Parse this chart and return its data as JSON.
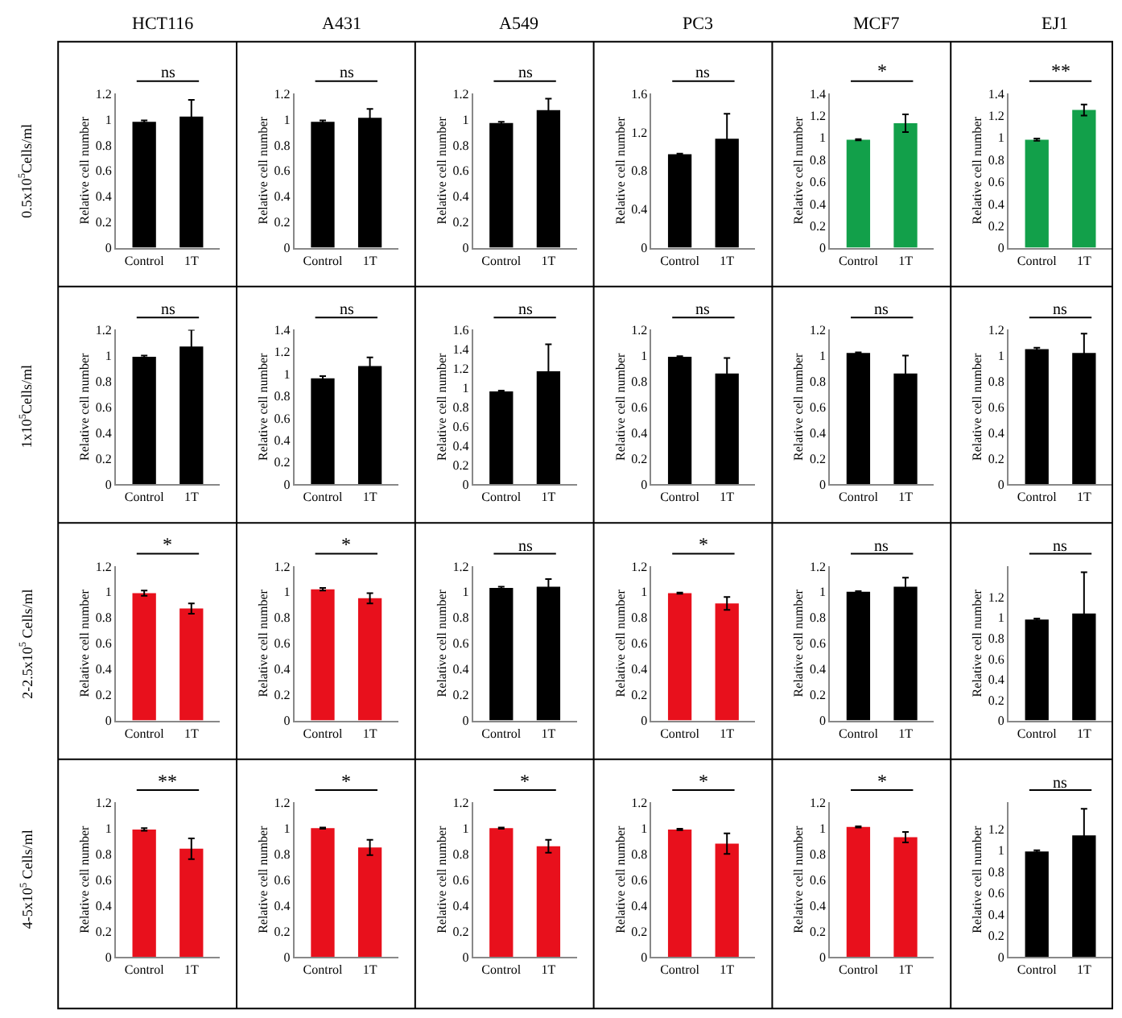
{
  "chart_data": [
    {
      "type": "bar",
      "title": "HCT116",
      "categories": [
        "Control",
        "1T"
      ],
      "values": [
        0.98,
        1.02
      ],
      "errors": [
        0.01,
        0.13
      ],
      "colors": [
        "#000000",
        "#000000"
      ],
      "ylabel": "Relative cell number",
      "ylim": [
        0,
        1.2
      ],
      "yticks": [
        0,
        0.2,
        0.4,
        0.6,
        0.8,
        1,
        1.2
      ],
      "annotations": [
        "ns",
        "0.5x10$^{5}$Cells/ml"
      ]
    },
    {
      "type": "bar",
      "title": "A431",
      "categories": [
        "Control",
        "1T"
      ],
      "values": [
        0.98,
        1.01
      ],
      "errors": [
        0.01,
        0.07
      ],
      "colors": [
        "#000000",
        "#000000"
      ],
      "ylabel": "Relative cell number",
      "ylim": [
        0,
        1.2
      ],
      "yticks": [
        0,
        0.2,
        0.4,
        0.6,
        0.8,
        1,
        1.2
      ],
      "annotations": [
        "ns"
      ]
    },
    {
      "type": "bar",
      "title": "A549",
      "categories": [
        "Control",
        "1T"
      ],
      "values": [
        0.97,
        1.07
      ],
      "errors": [
        0.01,
        0.09
      ],
      "colors": [
        "#000000",
        "#000000"
      ],
      "ylabel": "Relative cell number",
      "ylim": [
        0,
        1.2
      ],
      "yticks": [
        0,
        0.2,
        0.4,
        0.6,
        0.8,
        1,
        1.2
      ],
      "annotations": [
        "ns"
      ]
    },
    {
      "type": "bar",
      "title": "PC3",
      "categories": [
        "Control",
        "1T"
      ],
      "values": [
        0.97,
        1.13
      ],
      "errors": [
        0.005,
        0.26
      ],
      "colors": [
        "#000000",
        "#000000"
      ],
      "ylabel": "Relative cell number",
      "ylim": [
        0,
        1.6
      ],
      "yticks": [
        0,
        0.4,
        0.8,
        1.2,
        1.6
      ],
      "annotations": [
        "ns"
      ]
    },
    {
      "type": "bar",
      "title": "MCF7",
      "categories": [
        "Control",
        "1T"
      ],
      "values": [
        0.98,
        1.13
      ],
      "errors": [
        0.005,
        0.08
      ],
      "colors": [
        "#12a04a",
        "#12a04a"
      ],
      "ylabel": "Relative cell number",
      "ylim": [
        0,
        1.4
      ],
      "yticks": [
        0,
        0.2,
        0.4,
        0.6,
        0.8,
        1,
        1.2,
        1.4
      ],
      "annotations": [
        "*"
      ]
    },
    {
      "type": "bar",
      "title": "EJ1",
      "categories": [
        "Control",
        "1T"
      ],
      "values": [
        0.98,
        1.25
      ],
      "errors": [
        0.01,
        0.05
      ],
      "colors": [
        "#12a04a",
        "#12a04a"
      ],
      "ylabel": "Relative cell number",
      "ylim": [
        0,
        1.4
      ],
      "yticks": [
        0,
        0.2,
        0.4,
        0.6,
        0.8,
        1,
        1.2,
        1.4
      ],
      "annotations": [
        "**"
      ]
    },
    {
      "type": "bar",
      "categories": [
        "Control",
        "1T"
      ],
      "values": [
        0.99,
        1.07
      ],
      "errors": [
        0.01,
        0.13
      ],
      "colors": [
        "#000000",
        "#000000"
      ],
      "ylabel": "Relative cell number",
      "ylim": [
        0,
        1.2
      ],
      "yticks": [
        0,
        0.2,
        0.4,
        0.6,
        0.8,
        1,
        1.2
      ],
      "annotations": [
        "ns",
        "1x10$^{5}$Cells/ml"
      ]
    },
    {
      "type": "bar",
      "categories": [
        "Control",
        "1T"
      ],
      "values": [
        0.96,
        1.07
      ],
      "errors": [
        0.02,
        0.08
      ],
      "colors": [
        "#000000",
        "#000000"
      ],
      "ylabel": "Relative cell number",
      "ylim": [
        0,
        1.4
      ],
      "yticks": [
        0,
        0.2,
        0.4,
        0.6,
        0.8,
        1,
        1.2,
        1.4
      ],
      "annotations": [
        "ns"
      ]
    },
    {
      "type": "bar",
      "categories": [
        "Control",
        "1T"
      ],
      "values": [
        0.96,
        1.17
      ],
      "errors": [
        0.01,
        0.28
      ],
      "colors": [
        "#000000",
        "#000000"
      ],
      "ylabel": "Relative cell number",
      "ylim": [
        0,
        1.6
      ],
      "yticks": [
        0,
        0.2,
        0.4,
        0.6,
        0.8,
        1,
        1.2,
        1.4,
        1.6
      ],
      "annotations": [
        "ns"
      ]
    },
    {
      "type": "bar",
      "categories": [
        "Control",
        "1T"
      ],
      "values": [
        0.99,
        0.86
      ],
      "errors": [
        0.005,
        0.12
      ],
      "colors": [
        "#000000",
        "#000000"
      ],
      "ylabel": "Relative cell number",
      "ylim": [
        0,
        1.2
      ],
      "yticks": [
        0,
        0.2,
        0.4,
        0.6,
        0.8,
        1,
        1.2
      ],
      "annotations": [
        "ns"
      ]
    },
    {
      "type": "bar",
      "categories": [
        "Control",
        "1T"
      ],
      "values": [
        1.02,
        0.86
      ],
      "errors": [
        0.005,
        0.14
      ],
      "colors": [
        "#000000",
        "#000000"
      ],
      "ylabel": "Relative cell number",
      "ylim": [
        0,
        1.2
      ],
      "yticks": [
        0,
        0.2,
        0.4,
        0.6,
        0.8,
        1,
        1.2
      ],
      "annotations": [
        "ns"
      ]
    },
    {
      "type": "bar",
      "categories": [
        "Control",
        "1T"
      ],
      "values": [
        1.05,
        1.02
      ],
      "errors": [
        0.01,
        0.15
      ],
      "colors": [
        "#000000",
        "#000000"
      ],
      "ylabel": "Relative cell number",
      "ylim": [
        0,
        1.2
      ],
      "yticks": [
        0,
        0.2,
        0.4,
        0.6,
        0.8,
        1,
        1.2
      ],
      "annotations": [
        "ns"
      ]
    },
    {
      "type": "bar",
      "categories": [
        "Control",
        "1T"
      ],
      "values": [
        0.99,
        0.87
      ],
      "errors": [
        0.02,
        0.04
      ],
      "colors": [
        "#e8101c",
        "#e8101c"
      ],
      "ylabel": "Relative cell number",
      "ylim": [
        0,
        1.2
      ],
      "yticks": [
        0,
        0.2,
        0.4,
        0.6,
        0.8,
        1,
        1.2
      ],
      "annotations": [
        "*",
        "2-2.5x10$^{5}$ Cells/ml"
      ]
    },
    {
      "type": "bar",
      "categories": [
        "Control",
        "1T"
      ],
      "values": [
        1.02,
        0.95
      ],
      "errors": [
        0.01,
        0.04
      ],
      "colors": [
        "#e8101c",
        "#e8101c"
      ],
      "ylabel": "Relative cell number",
      "ylim": [
        0,
        1.2
      ],
      "yticks": [
        0,
        0.2,
        0.4,
        0.6,
        0.8,
        1,
        1.2
      ],
      "annotations": [
        "*"
      ]
    },
    {
      "type": "bar",
      "categories": [
        "Control",
        "1T"
      ],
      "values": [
        1.03,
        1.04
      ],
      "errors": [
        0.01,
        0.06
      ],
      "colors": [
        "#000000",
        "#000000"
      ],
      "ylabel": "Relative cell number",
      "ylim": [
        0,
        1.2
      ],
      "yticks": [
        0,
        0.2,
        0.4,
        0.6,
        0.8,
        1,
        1.2
      ],
      "annotations": [
        "ns"
      ]
    },
    {
      "type": "bar",
      "categories": [
        "Control",
        "1T"
      ],
      "values": [
        0.99,
        0.91
      ],
      "errors": [
        0.005,
        0.05
      ],
      "colors": [
        "#e8101c",
        "#e8101c"
      ],
      "ylabel": "Relative cell number",
      "ylim": [
        0,
        1.2
      ],
      "yticks": [
        0,
        0.2,
        0.4,
        0.6,
        0.8,
        1,
        1.2
      ],
      "annotations": [
        "*"
      ]
    },
    {
      "type": "bar",
      "categories": [
        "Control",
        "1T"
      ],
      "values": [
        1.0,
        1.04
      ],
      "errors": [
        0.005,
        0.07
      ],
      "colors": [
        "#000000",
        "#000000"
      ],
      "ylabel": "Relative cell number",
      "ylim": [
        0,
        1.2
      ],
      "yticks": [
        0,
        0.2,
        0.4,
        0.6,
        0.8,
        1,
        1.2
      ],
      "annotations": [
        "ns"
      ]
    },
    {
      "type": "bar",
      "categories": [
        "Control",
        "1T"
      ],
      "values": [
        0.98,
        1.04
      ],
      "errors": [
        0.01,
        0.4
      ],
      "colors": [
        "#000000",
        "#000000"
      ],
      "ylabel": "Relative cell number",
      "ylim": [
        0,
        1.5
      ],
      "yticks": [
        0,
        0.2,
        0.4,
        0.6,
        0.8,
        1,
        1.2
      ],
      "annotations": [
        "ns"
      ]
    },
    {
      "type": "bar",
      "categories": [
        "Control",
        "1T"
      ],
      "values": [
        0.99,
        0.84
      ],
      "errors": [
        0.01,
        0.08
      ],
      "colors": [
        "#e8101c",
        "#e8101c"
      ],
      "ylabel": "Relative cell number",
      "ylim": [
        0,
        1.2
      ],
      "yticks": [
        0,
        0.2,
        0.4,
        0.6,
        0.8,
        1,
        1.2
      ],
      "annotations": [
        "**",
        "4-5x10$^{5}$ Cells/ml"
      ]
    },
    {
      "type": "bar",
      "categories": [
        "Control",
        "1T"
      ],
      "values": [
        1.0,
        0.85
      ],
      "errors": [
        0.005,
        0.06
      ],
      "colors": [
        "#e8101c",
        "#e8101c"
      ],
      "ylabel": "Relative cell number",
      "ylim": [
        0,
        1.2
      ],
      "yticks": [
        0,
        0.2,
        0.4,
        0.6,
        0.8,
        1,
        1.2
      ],
      "annotations": [
        "*"
      ]
    },
    {
      "type": "bar",
      "categories": [
        "Control",
        "1T"
      ],
      "values": [
        1.0,
        0.86
      ],
      "errors": [
        0.005,
        0.05
      ],
      "colors": [
        "#e8101c",
        "#e8101c"
      ],
      "ylabel": "Relative cell number",
      "ylim": [
        0,
        1.2
      ],
      "yticks": [
        0,
        0.2,
        0.4,
        0.6,
        0.8,
        1,
        1.2
      ],
      "annotations": [
        "*"
      ]
    },
    {
      "type": "bar",
      "categories": [
        "Control",
        "1T"
      ],
      "values": [
        0.99,
        0.88
      ],
      "errors": [
        0.005,
        0.08
      ],
      "colors": [
        "#e8101c",
        "#e8101c"
      ],
      "ylabel": "Relative cell number",
      "ylim": [
        0,
        1.2
      ],
      "yticks": [
        0,
        0.2,
        0.4,
        0.6,
        0.8,
        1,
        1.2
      ],
      "annotations": [
        "*"
      ]
    },
    {
      "type": "bar",
      "categories": [
        "Control",
        "1T"
      ],
      "values": [
        1.01,
        0.93
      ],
      "errors": [
        0.005,
        0.04
      ],
      "colors": [
        "#e8101c",
        "#e8101c"
      ],
      "ylabel": "Relative cell number",
      "ylim": [
        0,
        1.2
      ],
      "yticks": [
        0,
        0.2,
        0.4,
        0.6,
        0.8,
        1,
        1.2
      ],
      "annotations": [
        "*"
      ]
    },
    {
      "type": "bar",
      "categories": [
        "Control",
        "1T"
      ],
      "values": [
        0.99,
        1.14
      ],
      "errors": [
        0.01,
        0.25
      ],
      "colors": [
        "#000000",
        "#000000"
      ],
      "ylabel": "Relative cell number",
      "ylim": [
        0,
        1.45
      ],
      "yticks": [
        0,
        0.2,
        0.4,
        0.6,
        0.8,
        1,
        1.2
      ],
      "annotations": [
        "ns"
      ]
    }
  ]
}
